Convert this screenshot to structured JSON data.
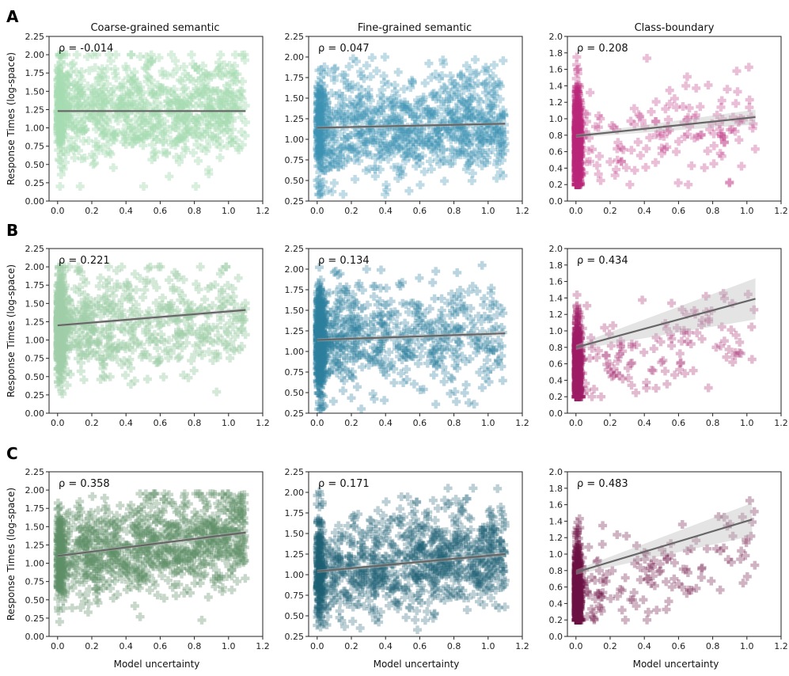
{
  "figure": {
    "row_labels": [
      "A",
      "B",
      "C"
    ],
    "column_titles": [
      "Coarse-grained semantic",
      "Fine-grained semantic",
      "Class-boundary"
    ],
    "xlabel": "Model uncertainty",
    "ylabel": "Response Times (log-space)"
  },
  "chart_data": [
    {
      "type": "scatter",
      "row": "A",
      "title": "Coarse-grained semantic",
      "annotation": "ρ = -0.014",
      "color": "#a7dbb1",
      "point_opacity": 0.45,
      "xlim": [
        -0.05,
        1.2
      ],
      "ylim": [
        0,
        2.25
      ],
      "xticks": [
        "0.0",
        "0.2",
        "0.4",
        "0.6",
        "0.8",
        "1.0",
        "1.2"
      ],
      "yticks": [
        "0.00",
        "0.25",
        "0.50",
        "0.75",
        "1.00",
        "1.25",
        "1.50",
        "1.75",
        "2.00",
        "2.25"
      ],
      "x_dist": "uniform",
      "x_max": 1.1,
      "n_points": 900,
      "y_mean": 1.25,
      "y_sd": 0.36,
      "y_bounds": [
        0.2,
        2.0
      ],
      "fit": {
        "x": [
          0.0,
          1.1
        ],
        "y": [
          1.23,
          1.23
        ],
        "ci_halfwidth": [
          0.015,
          0.015
        ]
      }
    },
    {
      "type": "scatter",
      "row": "A",
      "title": "Fine-grained semantic",
      "annotation": "ρ = 0.047",
      "color": "#3d93b2",
      "point_opacity": 0.33,
      "xlim": [
        -0.05,
        1.2
      ],
      "ylim": [
        0.25,
        2.25
      ],
      "xticks": [
        "0.0",
        "0.2",
        "0.4",
        "0.6",
        "0.8",
        "1.0",
        "1.2"
      ],
      "yticks": [
        "0.25",
        "0.50",
        "0.75",
        "1.00",
        "1.25",
        "1.50",
        "1.75",
        "2.00",
        "2.25"
      ],
      "x_dist": "uniform",
      "x_max": 1.1,
      "n_points": 1000,
      "y_mean": 1.17,
      "y_sd": 0.32,
      "y_bounds": [
        0.33,
        2.05
      ],
      "fit": {
        "x": [
          0.0,
          1.1
        ],
        "y": [
          1.14,
          1.19
        ],
        "ci_halfwidth": [
          0.02,
          0.02
        ]
      }
    },
    {
      "type": "scatter",
      "row": "A",
      "title": "Class-boundary",
      "annotation": "ρ = 0.208",
      "color": "#b8287a",
      "point_opacity": 0.3,
      "xlim": [
        -0.05,
        1.2
      ],
      "ylim": [
        0,
        2.0
      ],
      "xticks": [
        "0.0",
        "0.2",
        "0.4",
        "0.6",
        "0.8",
        "1.0",
        "1.2"
      ],
      "yticks": [
        "0.0",
        "0.2",
        "0.4",
        "0.6",
        "0.8",
        "1.0",
        "1.2",
        "1.4",
        "1.6",
        "1.8",
        "2.0"
      ],
      "x_dist": "near_zero",
      "x_max": 1.05,
      "n_points": 900,
      "y_mean": 0.8,
      "y_sd": 0.3,
      "y_bounds": [
        0.2,
        1.75
      ],
      "fit": {
        "x": [
          0.0,
          1.05
        ],
        "y": [
          0.79,
          1.02
        ],
        "ci_halfwidth": [
          0.02,
          0.09
        ]
      }
    },
    {
      "type": "scatter",
      "row": "B",
      "title": "Coarse-grained semantic",
      "annotation": "ρ = 0.221",
      "color": "#9fcfa8",
      "point_opacity": 0.45,
      "xlim": [
        -0.05,
        1.2
      ],
      "ylim": [
        0,
        2.25
      ],
      "xticks": [
        "0.0",
        "0.2",
        "0.4",
        "0.6",
        "0.8",
        "1.0",
        "1.2"
      ],
      "yticks": [
        "0.00",
        "0.25",
        "0.50",
        "0.75",
        "1.00",
        "1.25",
        "1.50",
        "1.75",
        "2.00",
        "2.25"
      ],
      "x_dist": "skewed",
      "x_max": 1.1,
      "n_points": 900,
      "y_mean": 1.25,
      "y_sd": 0.33,
      "y_bounds": [
        0.2,
        2.0
      ],
      "fit": {
        "x": [
          0.0,
          1.1
        ],
        "y": [
          1.2,
          1.41
        ],
        "ci_halfwidth": [
          0.02,
          0.03
        ]
      }
    },
    {
      "type": "scatter",
      "row": "B",
      "title": "Fine-grained semantic",
      "annotation": "ρ = 0.134",
      "color": "#2d7f9e",
      "point_opacity": 0.33,
      "xlim": [
        -0.05,
        1.2
      ],
      "ylim": [
        0.25,
        2.25
      ],
      "xticks": [
        "0.0",
        "0.2",
        "0.4",
        "0.6",
        "0.8",
        "1.0",
        "1.2"
      ],
      "yticks": [
        "0.25",
        "0.50",
        "0.75",
        "1.00",
        "1.25",
        "1.50",
        "1.75",
        "2.00",
        "2.25"
      ],
      "x_dist": "skewed",
      "x_max": 1.1,
      "n_points": 1000,
      "y_mean": 1.17,
      "y_sd": 0.32,
      "y_bounds": [
        0.3,
        2.05
      ],
      "fit": {
        "x": [
          0.0,
          1.1
        ],
        "y": [
          1.14,
          1.22
        ],
        "ci_halfwidth": [
          0.02,
          0.03
        ]
      }
    },
    {
      "type": "scatter",
      "row": "B",
      "title": "Class-boundary",
      "annotation": "ρ = 0.434",
      "color": "#9e1f66",
      "point_opacity": 0.3,
      "xlim": [
        -0.05,
        1.2
      ],
      "ylim": [
        0,
        2.0
      ],
      "xticks": [
        "0.0",
        "0.2",
        "0.4",
        "0.6",
        "0.8",
        "1.0",
        "1.2"
      ],
      "yticks": [
        "0.0",
        "0.2",
        "0.4",
        "0.6",
        "0.8",
        "1.0",
        "1.2",
        "1.4",
        "1.6",
        "1.8",
        "2.0"
      ],
      "x_dist": "near_zero",
      "x_max": 1.05,
      "n_points": 800,
      "y_mean": 0.8,
      "y_sd": 0.3,
      "y_bounds": [
        0.2,
        1.75
      ],
      "fit": {
        "x": [
          0.0,
          1.05
        ],
        "y": [
          0.8,
          1.39
        ],
        "ci_halfwidth": [
          0.03,
          0.25
        ]
      }
    },
    {
      "type": "scatter",
      "row": "C",
      "title": "Coarse-grained semantic",
      "annotation": "ρ = 0.358",
      "color": "#5e8f66",
      "point_opacity": 0.35,
      "xlim": [
        -0.05,
        1.2
      ],
      "ylim": [
        0,
        2.25
      ],
      "xticks": [
        "0.0",
        "0.2",
        "0.4",
        "0.6",
        "0.8",
        "1.0",
        "1.2"
      ],
      "yticks": [
        "0.00",
        "0.25",
        "0.50",
        "0.75",
        "1.00",
        "1.25",
        "1.50",
        "1.75",
        "2.00",
        "2.25"
      ],
      "x_dist": "uniform",
      "x_max": 1.1,
      "n_points": 1100,
      "y_mean": 1.25,
      "y_sd": 0.33,
      "y_bounds": [
        0.2,
        1.95
      ],
      "fit": {
        "x": [
          0.0,
          1.1
        ],
        "y": [
          1.1,
          1.42
        ],
        "ci_halfwidth": [
          0.02,
          0.03
        ]
      }
    },
    {
      "type": "scatter",
      "row": "C",
      "title": "Fine-grained semantic",
      "annotation": "ρ = 0.171",
      "color": "#1f5f75",
      "point_opacity": 0.3,
      "xlim": [
        -0.05,
        1.2
      ],
      "ylim": [
        0.25,
        2.25
      ],
      "xticks": [
        "0.0",
        "0.2",
        "0.4",
        "0.6",
        "0.8",
        "1.0",
        "1.2"
      ],
      "yticks": [
        "0.25",
        "0.50",
        "0.75",
        "1.00",
        "1.25",
        "1.50",
        "1.75",
        "2.00",
        "2.25"
      ],
      "x_dist": "uniform",
      "x_max": 1.1,
      "n_points": 1100,
      "y_mean": 1.15,
      "y_sd": 0.32,
      "y_bounds": [
        0.33,
        2.05
      ],
      "fit": {
        "x": [
          0.0,
          1.1
        ],
        "y": [
          1.04,
          1.25
        ],
        "ci_halfwidth": [
          0.02,
          0.03
        ]
      }
    },
    {
      "type": "scatter",
      "row": "C",
      "title": "Class-boundary",
      "annotation": "ρ = 0.483",
      "color": "#6e1243",
      "point_opacity": 0.32,
      "xlim": [
        -0.05,
        1.2
      ],
      "ylim": [
        0,
        2.0
      ],
      "xticks": [
        "0.0",
        "0.2",
        "0.4",
        "0.6",
        "0.8",
        "1.0",
        "1.2"
      ],
      "yticks": [
        "0.0",
        "0.2",
        "0.4",
        "0.6",
        "0.8",
        "1.0",
        "1.2",
        "1.4",
        "1.6",
        "1.8",
        "2.0"
      ],
      "x_dist": "near_zero",
      "x_max": 1.05,
      "n_points": 800,
      "y_mean": 0.78,
      "y_sd": 0.3,
      "y_bounds": [
        0.2,
        1.75
      ],
      "fit": {
        "x": [
          0.0,
          1.03
        ],
        "y": [
          0.78,
          1.42
        ],
        "ci_halfwidth": [
          0.03,
          0.2
        ]
      }
    }
  ]
}
